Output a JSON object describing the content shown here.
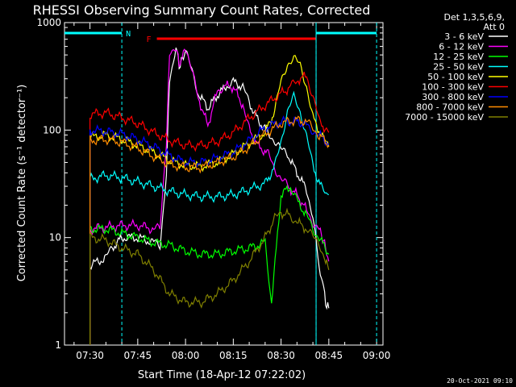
{
  "chart_data": {
    "type": "line",
    "title": "RHESSI Observing Summary Count Rates, Corrected",
    "xlabel": "Start Time (18-Apr-12 07:22:02)",
    "ylabel": "Corrected Count Rate (s⁻¹ detector⁻¹)",
    "y_scale": "log",
    "ylim": [
      1,
      1000
    ],
    "xlim": [
      "07:22",
      "09:02"
    ],
    "x_ticks": [
      "07:30",
      "07:45",
      "08:00",
      "08:15",
      "08:30",
      "08:45",
      "09:00"
    ],
    "y_ticks": [
      "1",
      "10",
      "100",
      "1000"
    ],
    "legend_header": [
      "Det 1,3,5,6,9,",
      "Att 0"
    ],
    "legend_placement": "right",
    "footer_date": "20-Oct-2021 09:10",
    "flags": [
      {
        "label": "N",
        "color": "#00ffff",
        "segments": [
          [
            "07:22",
            "07:40"
          ],
          [
            "08:41",
            "09:00"
          ]
        ]
      },
      {
        "label": "F",
        "color": "#ff0000",
        "segments": [
          [
            "07:51",
            "08:41"
          ]
        ]
      }
    ],
    "series": [
      {
        "name": "3 - 6 keV",
        "color": "#ffffff",
        "x": [
          "07:30",
          "07:35",
          "07:37",
          "07:40",
          "07:45",
          "07:50",
          "07:52",
          "07:54",
          "07:55",
          "07:57",
          "07:58",
          "07:59",
          "08:00",
          "08:02",
          "08:04",
          "08:07",
          "08:10",
          "08:13",
          "08:15",
          "08:18",
          "08:20",
          "08:23",
          "08:26",
          "08:28",
          "08:30",
          "08:32",
          "08:35",
          "08:38",
          "08:40",
          "08:42",
          "08:43",
          "08:44",
          "08:45"
        ],
        "y": [
          5.5,
          6.5,
          8,
          10,
          10,
          9,
          8.5,
          40,
          300,
          600,
          400,
          450,
          550,
          350,
          220,
          160,
          210,
          260,
          280,
          250,
          180,
          120,
          95,
          80,
          65,
          60,
          40,
          28,
          16,
          5,
          4,
          2.5,
          2.2
        ]
      },
      {
        "name": "6 - 12 keV",
        "color": "#ff00ff",
        "x": [
          "07:30",
          "07:35",
          "07:40",
          "07:45",
          "07:50",
          "07:52",
          "07:54",
          "07:55",
          "07:57",
          "07:58",
          "07:59",
          "08:00",
          "08:02",
          "08:04",
          "08:07",
          "08:10",
          "08:12",
          "08:15",
          "08:18",
          "08:20",
          "08:23",
          "08:26",
          "08:28",
          "08:30",
          "08:32",
          "08:35",
          "08:38",
          "08:40",
          "08:42",
          "08:43",
          "08:44",
          "08:45"
        ],
        "y": [
          12,
          12.5,
          13,
          13,
          12,
          12,
          80,
          500,
          620,
          400,
          480,
          600,
          350,
          200,
          110,
          230,
          260,
          250,
          170,
          100,
          70,
          60,
          45,
          35,
          30,
          25,
          18,
          14,
          12,
          10,
          8,
          6
        ]
      },
      {
        "name": "12 - 25 keV",
        "color": "#00ff00",
        "x": [
          "07:30",
          "07:35",
          "07:40",
          "07:45",
          "07:50",
          "07:55",
          "08:00",
          "08:05",
          "08:10",
          "08:15",
          "08:20",
          "08:25",
          "08:27",
          "08:30",
          "08:33",
          "08:35",
          "08:38",
          "08:40",
          "08:42",
          "08:45"
        ],
        "y": [
          12,
          12,
          11,
          10,
          9,
          8.5,
          7.5,
          7,
          7,
          7.5,
          8,
          9,
          2.5,
          25,
          30,
          22,
          16,
          12,
          10,
          7
        ]
      },
      {
        "name": "25 - 50 keV",
        "color": "#00ffff",
        "x": [
          "07:30",
          "07:35",
          "07:40",
          "07:45",
          "07:50",
          "07:55",
          "08:00",
          "08:05",
          "08:10",
          "08:15",
          "08:20",
          "08:25",
          "08:28",
          "08:30",
          "08:32",
          "08:34",
          "08:36",
          "08:38",
          "08:40",
          "08:43",
          "08:45"
        ],
        "y": [
          35,
          38,
          36,
          33,
          30,
          27,
          25,
          24,
          24,
          25,
          28,
          32,
          45,
          80,
          150,
          200,
          150,
          90,
          45,
          28,
          25
        ]
      },
      {
        "name": "50 - 100 keV",
        "color": "#ffff00",
        "x": [
          "07:30",
          "07:35",
          "07:40",
          "07:45",
          "07:50",
          "07:55",
          "08:00",
          "08:05",
          "08:10",
          "08:15",
          "08:20",
          "08:25",
          "08:28",
          "08:30",
          "08:32",
          "08:34",
          "08:36",
          "08:38",
          "08:40",
          "08:43",
          "08:45"
        ],
        "y": [
          85,
          90,
          82,
          72,
          62,
          52,
          47,
          46,
          50,
          60,
          75,
          95,
          150,
          280,
          420,
          460,
          400,
          260,
          130,
          85,
          70
        ]
      },
      {
        "name": "100 - 300 keV",
        "color": "#ff0000",
        "x": [
          "07:30",
          "07:35",
          "07:40",
          "07:45",
          "07:50",
          "07:55",
          "08:00",
          "08:05",
          "08:10",
          "08:15",
          "08:20",
          "08:25",
          "08:30",
          "08:33",
          "08:35",
          "08:38",
          "08:40",
          "08:42",
          "08:45"
        ],
        "y": [
          140,
          145,
          130,
          115,
          95,
          80,
          72,
          72,
          78,
          95,
          130,
          170,
          220,
          250,
          290,
          320,
          210,
          120,
          95
        ]
      },
      {
        "name": "300 - 800 keV",
        "color": "#0000ff",
        "x": [
          "07:30",
          "07:35",
          "07:40",
          "07:45",
          "07:50",
          "07:55",
          "08:00",
          "08:05",
          "08:10",
          "08:15",
          "08:20",
          "08:25",
          "08:30",
          "08:35",
          "08:38",
          "08:40",
          "08:42",
          "08:45"
        ],
        "y": [
          100,
          97,
          92,
          82,
          70,
          58,
          50,
          50,
          55,
          62,
          80,
          105,
          120,
          120,
          110,
          100,
          90,
          75
        ]
      },
      {
        "name": "800 - 7000 keV",
        "color": "#ff8c00",
        "x": [
          "07:30",
          "07:35",
          "07:40",
          "07:45",
          "07:50",
          "07:55",
          "08:00",
          "08:05",
          "08:10",
          "08:15",
          "08:20",
          "08:25",
          "08:30",
          "08:35",
          "08:38",
          "08:40",
          "08:42",
          "08:45"
        ],
        "y": [
          80,
          82,
          77,
          68,
          57,
          48,
          45,
          45,
          50,
          56,
          70,
          92,
          115,
          125,
          118,
          105,
          90,
          72
        ]
      },
      {
        "name": "7000 - 15000 keV",
        "color": "#808000",
        "x": [
          "07:30",
          "07:35",
          "07:40",
          "07:45",
          "07:50",
          "07:55",
          "08:00",
          "08:05",
          "08:10",
          "08:15",
          "08:20",
          "08:25",
          "08:28",
          "08:30",
          "08:33",
          "08:35",
          "08:38",
          "08:40",
          "08:42",
          "08:44",
          "08:45"
        ],
        "y": [
          10,
          9.5,
          8,
          7,
          5,
          3,
          2.5,
          2.5,
          3,
          4,
          6,
          10,
          15,
          17,
          16,
          14,
          12,
          10,
          9,
          6,
          5
        ]
      }
    ]
  }
}
